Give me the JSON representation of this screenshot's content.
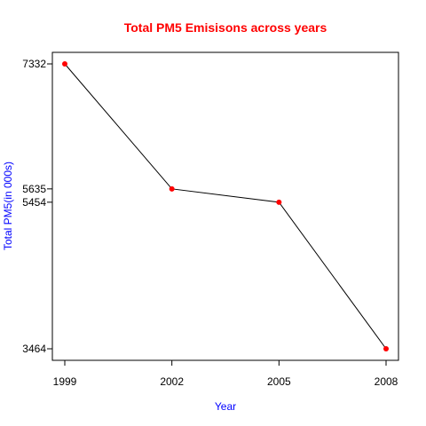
{
  "chart_data": {
    "type": "line",
    "title": "Total PM5 Emisisons across years",
    "xlabel": "Year",
    "ylabel": "Total PM5(in 000s)",
    "x": [
      1999,
      2002,
      2005,
      2008
    ],
    "y": [
      7332,
      5635,
      5454,
      3464
    ],
    "xticks": [
      "1999",
      "2002",
      "2005",
      "2008"
    ],
    "yticks": [
      7332,
      5635,
      5454,
      3464
    ],
    "ytick_labels": [
      "7332",
      "5635",
      "5454",
      "3464"
    ],
    "xlim": [
      1999,
      2008
    ],
    "ylim": [
      3464,
      7332
    ],
    "grid": false,
    "colors": {
      "title": "#ff0000",
      "axis_labels": "#0000ff",
      "points": "#ff0000",
      "line": "#000000"
    }
  }
}
